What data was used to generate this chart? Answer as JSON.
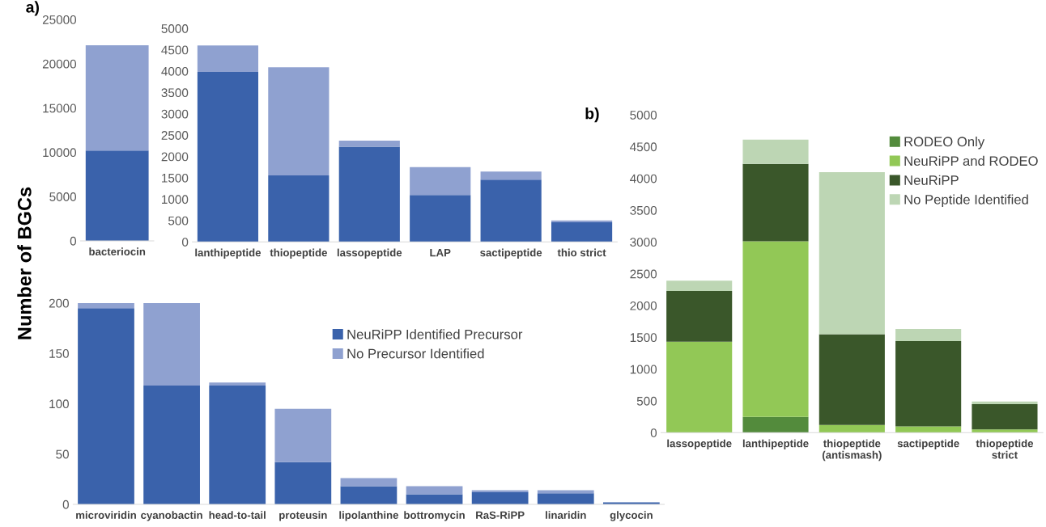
{
  "chart_data": [
    {
      "type": "bar",
      "stacked": true,
      "ylabel": "Number of BGCs",
      "annotations": [
        "a)"
      ],
      "categories": [
        "bacteriocin"
      ],
      "ylim": [
        0,
        25000
      ],
      "yticks": [
        0,
        5000,
        10000,
        15000,
        20000,
        25000
      ],
      "series": [
        {
          "color": "#3a62ab",
          "values": [
            10200
          ]
        },
        {
          "color": "#8fa1d0",
          "values": [
            11900
          ]
        }
      ]
    },
    {
      "type": "bar",
      "stacked": true,
      "categories": [
        "lanthipeptide",
        "thiopeptide",
        "lassopeptide",
        "LAP",
        "sactipeptide",
        "thio strict"
      ],
      "ylim": [
        0,
        5000
      ],
      "yticks": [
        0,
        500,
        1000,
        1500,
        2000,
        2500,
        3000,
        3500,
        4000,
        4500,
        5000
      ],
      "series": [
        {
          "color": "#3a62ab",
          "values": [
            3980,
            1560,
            2230,
            1100,
            1460,
            460
          ]
        },
        {
          "color": "#8fa1d0",
          "values": [
            620,
            2530,
            140,
            650,
            190,
            40
          ]
        }
      ]
    },
    {
      "type": "bar",
      "stacked": true,
      "legend": "top",
      "categories": [
        "microviridin",
        "cyanobactin",
        "head-to-tail",
        "proteusin",
        "lipolanthine",
        "bottromycin",
        "RaS-RiPP",
        "linaridin",
        "glycocin"
      ],
      "ylim": [
        0,
        200
      ],
      "yticks": [
        0,
        50,
        100,
        150,
        200
      ],
      "series": [
        {
          "name": "NeuRiPP Identified Precursor",
          "color": "#3a62ab",
          "values": [
            195,
            118,
            118,
            42,
            18,
            10,
            12,
            11,
            2
          ]
        },
        {
          "name": "No Precursor Identified",
          "color": "#8fa1d0",
          "values": [
            5,
            82,
            3,
            53,
            8,
            8,
            2,
            3,
            0
          ]
        }
      ]
    },
    {
      "type": "bar",
      "stacked": true,
      "legend": "top right",
      "annotations": [
        "b)"
      ],
      "categories": [
        "lassopeptide",
        "lanthipeptide",
        "thiopeptide\n(antismash)",
        "sactipeptide",
        "thiopeptide\nstrict"
      ],
      "ylim": [
        0,
        5000
      ],
      "yticks": [
        0,
        500,
        1000,
        1500,
        2000,
        2500,
        3000,
        3500,
        4000,
        4500,
        5000
      ],
      "series": [
        {
          "name": "RODEO Only",
          "color": "#538b3c",
          "values": [
            0,
            250,
            0,
            0,
            0
          ]
        },
        {
          "name": "NeuRiPP and RODEO",
          "color": "#92c856",
          "values": [
            1430,
            2760,
            120,
            100,
            50
          ]
        },
        {
          "name": "NeuRiPP",
          "color": "#3a572a",
          "values": [
            800,
            1220,
            1430,
            1340,
            400
          ]
        },
        {
          "name": "No Peptide Identified",
          "color": "#bdd6b4",
          "values": [
            160,
            380,
            2550,
            190,
            40
          ]
        }
      ]
    }
  ]
}
